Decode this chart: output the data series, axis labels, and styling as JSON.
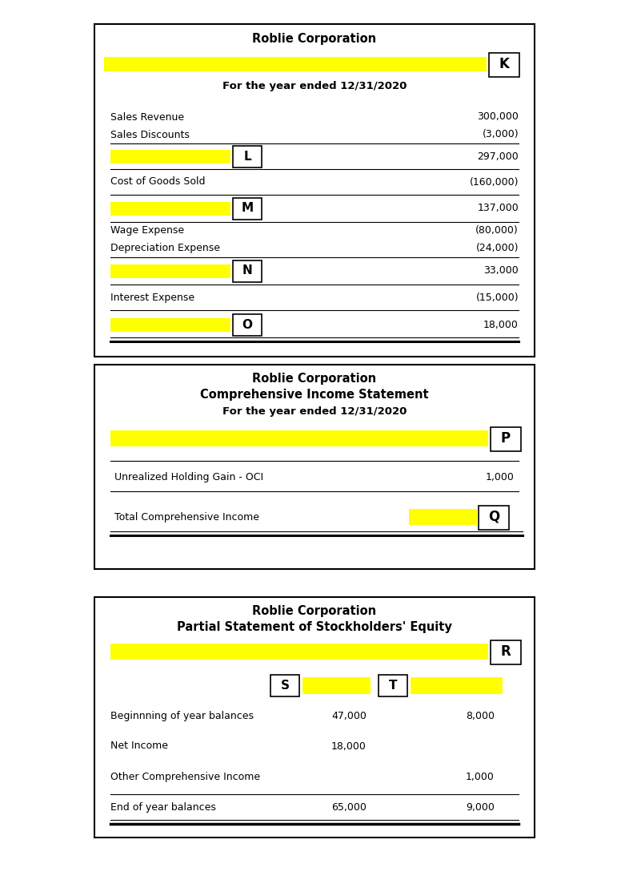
{
  "yellow": "#FFFF00",
  "white": "#FFFFFF",
  "black": "#000000",
  "bg": "#FFFFFF",
  "panel1": {
    "title1": "Roblie Corporation",
    "label_K": "K",
    "subtitle": "For the year ended 12/31/2020"
  },
  "panel2": {
    "title1": "Roblie Corporation",
    "title2": "Comprehensive Income Statement",
    "title3": "For the year ended 12/31/2020",
    "label_P": "P",
    "label_Q": "Q",
    "row_oci_label": "Unrealized Holding Gain - OCI",
    "row_oci_value": "1,000",
    "row_tci_label": "Total Comprehensive Income"
  },
  "panel3": {
    "title1": "Roblie Corporation",
    "title2": "Partial Statement of Stockholders' Equity",
    "label_R": "R",
    "label_S": "S",
    "label_T": "T",
    "rows": [
      {
        "label": "Beginnning of year balances",
        "col1": "47,000",
        "col2": "8,000",
        "line_above": false,
        "line_below": false
      },
      {
        "label": "Net Income",
        "col1": "18,000",
        "col2": "",
        "line_above": false,
        "line_below": false
      },
      {
        "label": "Other Comprehensive Income",
        "col1": "",
        "col2": "1,000",
        "line_above": false,
        "line_below": false
      },
      {
        "label": "End of year balances",
        "col1": "65,000",
        "col2": "9,000",
        "line_above": true,
        "line_below": true
      }
    ]
  }
}
